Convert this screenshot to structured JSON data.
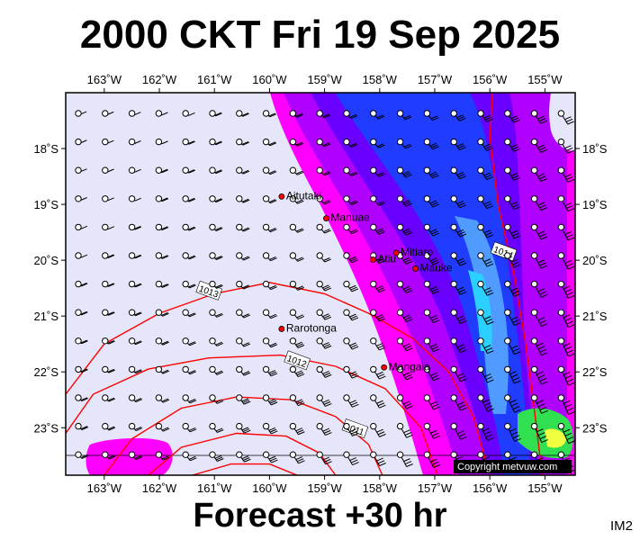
{
  "title": "2000 CKT Fri 19 Sep 2025",
  "footer": "Forecast +30 hr",
  "corner_label": "IM2",
  "copyright": "Copyright metvuw.com",
  "map": {
    "lon_range": [
      -163.7,
      -154.45
    ],
    "lat_range": [
      -23.85,
      -17.0
    ],
    "x_ticks": [
      {
        "lon": -163,
        "label": "163˚W"
      },
      {
        "lon": -162,
        "label": "162˚W"
      },
      {
        "lon": -161,
        "label": "161˚W"
      },
      {
        "lon": -160,
        "label": "160˚W"
      },
      {
        "lon": -159,
        "label": "159˚W"
      },
      {
        "lon": -158,
        "label": "158˚W"
      },
      {
        "lon": -157,
        "label": "157˚W"
      },
      {
        "lon": -156,
        "label": "156˚W"
      },
      {
        "lon": -155,
        "label": "155˚W"
      }
    ],
    "y_ticks": [
      {
        "lat": -18,
        "label": "18˚S"
      },
      {
        "lat": -19,
        "label": "19˚S"
      },
      {
        "lat": -20,
        "label": "20˚S"
      },
      {
        "lat": -21,
        "label": "21˚S"
      },
      {
        "lat": -22,
        "label": "22˚S"
      },
      {
        "lat": -23,
        "label": "23˚S"
      }
    ],
    "places": [
      {
        "name": "Aitutaki",
        "lon": -159.78,
        "lat": -18.86
      },
      {
        "name": "Manuae",
        "lon": -158.97,
        "lat": -19.25
      },
      {
        "name": "Mitiaro",
        "lon": -157.7,
        "lat": -19.87
      },
      {
        "name": "Atiu",
        "lon": -158.12,
        "lat": -19.99
      },
      {
        "name": "Mauke",
        "lon": -157.35,
        "lat": -20.15
      },
      {
        "name": "Rarotonga",
        "lon": -159.78,
        "lat": -21.23
      },
      {
        "name": "Mangaia",
        "lon": -157.92,
        "lat": -21.92
      }
    ],
    "isobars": [
      {
        "label": "1014",
        "points": [
          [
            -155.95,
            -17.0
          ],
          [
            -156.0,
            -17.8
          ],
          [
            -155.85,
            -19.0
          ],
          [
            -155.55,
            -20.3
          ],
          [
            -155.35,
            -21.5
          ],
          [
            -155.2,
            -22.6
          ],
          [
            -155.05,
            -23.85
          ]
        ],
        "label_at": [
          -155.75,
          -19.85
        ]
      },
      {
        "label": "1013",
        "points": [
          [
            -163.7,
            -22.4
          ],
          [
            -163.0,
            -21.5
          ],
          [
            -162.0,
            -20.95
          ],
          [
            -161.0,
            -20.6
          ],
          [
            -160.0,
            -20.4
          ],
          [
            -159.0,
            -20.6
          ],
          [
            -158.2,
            -20.95
          ],
          [
            -157.4,
            -21.4
          ],
          [
            -156.75,
            -22.0
          ],
          [
            -156.3,
            -22.8
          ],
          [
            -156.0,
            -23.85
          ]
        ],
        "label_at": [
          -161.1,
          -20.55
        ]
      },
      {
        "label": "1012",
        "points": [
          [
            -163.7,
            -23.1
          ],
          [
            -163.2,
            -22.4
          ],
          [
            -162.2,
            -21.95
          ],
          [
            -161.1,
            -21.75
          ],
          [
            -159.8,
            -21.7
          ],
          [
            -158.8,
            -21.9
          ],
          [
            -157.9,
            -22.3
          ],
          [
            -157.25,
            -23.0
          ],
          [
            -156.95,
            -23.85
          ]
        ],
        "label_at": [
          -159.5,
          -21.8
        ]
      },
      {
        "label": "1011",
        "points": [
          [
            -163.0,
            -23.85
          ],
          [
            -162.5,
            -23.2
          ],
          [
            -161.6,
            -22.65
          ],
          [
            -160.6,
            -22.45
          ],
          [
            -159.6,
            -22.5
          ],
          [
            -158.8,
            -22.8
          ],
          [
            -158.2,
            -23.3
          ],
          [
            -157.95,
            -23.85
          ]
        ],
        "label_at": [
          -158.45,
          -23.02
        ]
      },
      {
        "label": "",
        "points": [
          [
            -162.2,
            -23.85
          ],
          [
            -161.6,
            -23.35
          ],
          [
            -160.6,
            -23.1
          ],
          [
            -159.7,
            -23.15
          ],
          [
            -159.1,
            -23.45
          ],
          [
            -158.8,
            -23.85
          ]
        ]
      },
      {
        "label": "",
        "points": [
          [
            -161.4,
            -23.85
          ],
          [
            -160.7,
            -23.65
          ],
          [
            -160.0,
            -23.65
          ],
          [
            -159.5,
            -23.85
          ]
        ]
      }
    ]
  }
}
